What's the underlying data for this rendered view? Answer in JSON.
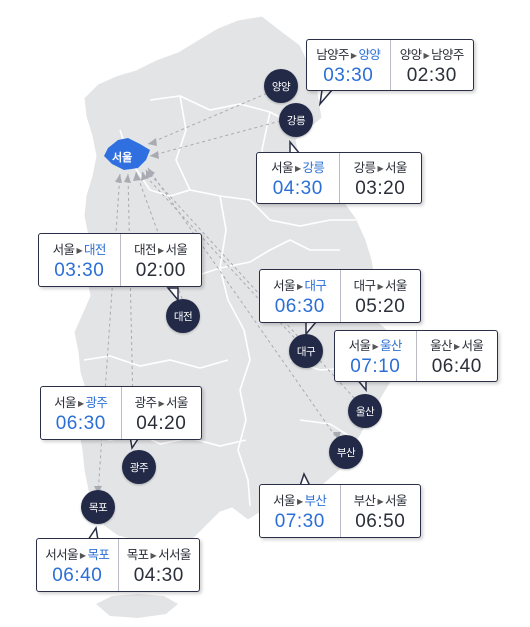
{
  "colors": {
    "map_land": "#e3e4e6",
    "seoul_fill": "#2f6fe0",
    "city_marker": "#232a47",
    "highlight": "#2b6fd6"
  },
  "cities": {
    "seoul": "서울",
    "yangyang": "양양",
    "gangneung": "강릉",
    "daejeon": "대전",
    "daegu": "대구",
    "ulsan": "울산",
    "busan": "부산",
    "gwangju": "광주",
    "mokpo": "목포"
  },
  "routes": {
    "yangyang": {
      "out_from": "남양주",
      "out_to": "양양",
      "out_time": "03:30",
      "in_from": "양양",
      "in_to": "남양주",
      "in_time": "02:30"
    },
    "gangneung": {
      "out_from": "서울",
      "out_to": "강릉",
      "out_time": "04:30",
      "in_from": "강릉",
      "in_to": "서울",
      "in_time": "03:20"
    },
    "daejeon": {
      "out_from": "서울",
      "out_to": "대전",
      "out_time": "03:30",
      "in_from": "대전",
      "in_to": "서울",
      "in_time": "02:00"
    },
    "daegu": {
      "out_from": "서울",
      "out_to": "대구",
      "out_time": "06:30",
      "in_from": "대구",
      "in_to": "서울",
      "in_time": "05:20"
    },
    "ulsan": {
      "out_from": "서울",
      "out_to": "울산",
      "out_time": "07:10",
      "in_from": "울산",
      "in_to": "서울",
      "in_time": "06:40"
    },
    "gwangju": {
      "out_from": "서울",
      "out_to": "광주",
      "out_time": "06:30",
      "in_from": "광주",
      "in_to": "서울",
      "in_time": "04:20"
    },
    "busan": {
      "out_from": "서울",
      "out_to": "부산",
      "out_time": "07:30",
      "in_from": "부산",
      "in_to": "서울",
      "in_time": "06:50"
    },
    "mokpo": {
      "out_from": "서서울",
      "out_to": "목포",
      "out_time": "06:40",
      "in_from": "목포",
      "in_to": "서서울",
      "in_time": "04:30"
    }
  }
}
